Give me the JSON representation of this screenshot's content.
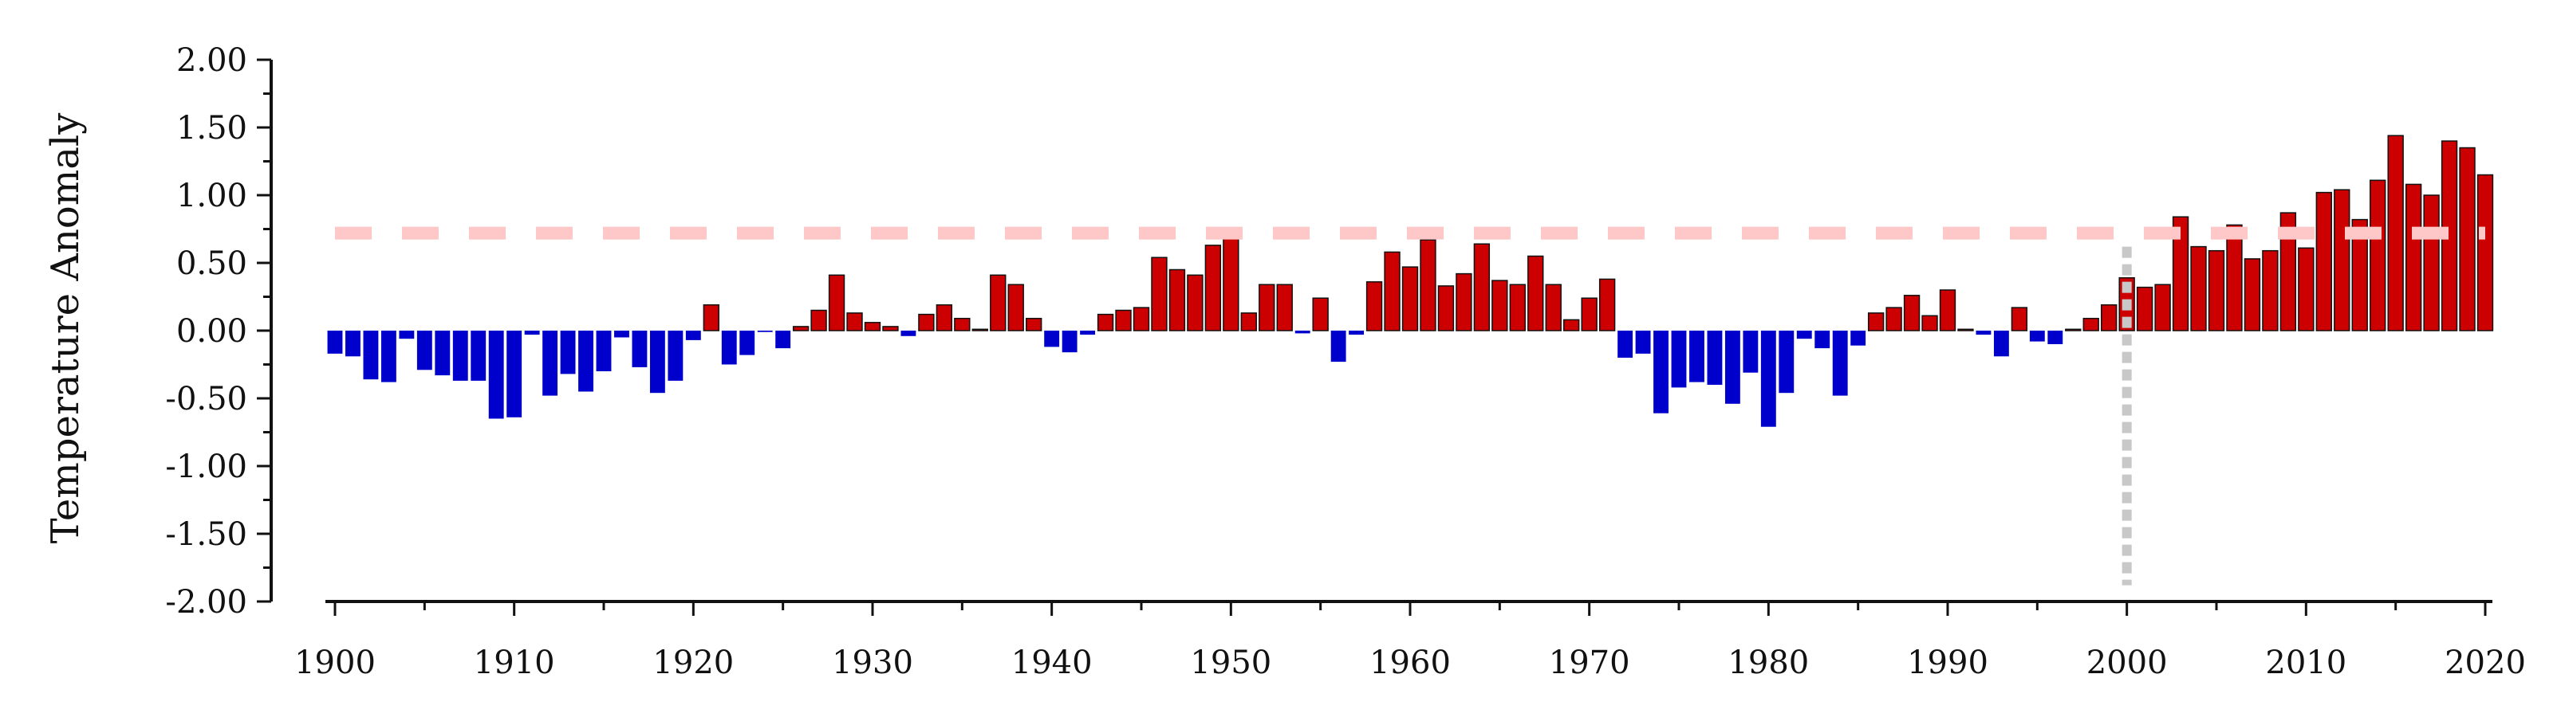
{
  "chart_data": {
    "type": "bar",
    "title": "",
    "xlabel": "",
    "ylabel": "Temperature Anomaly",
    "ylim": [
      -2.0,
      2.0
    ],
    "xlim": [
      1900,
      2020
    ],
    "grid": false,
    "legend": "none",
    "y_tick_labels": [
      "-2.00",
      "-1.50",
      "-1.00",
      "-0.50",
      "0.00",
      "0.50",
      "1.00",
      "1.50",
      "2.00"
    ],
    "x_tick_labels": [
      "1900",
      "1910",
      "1920",
      "1930",
      "1940",
      "1950",
      "1960",
      "1970",
      "1980",
      "1990",
      "2000",
      "2010",
      "2020"
    ],
    "colors": {
      "positive": "#cc0000",
      "negative": "#0000cc",
      "outline": "#111111",
      "reference_line": "#ffc8c8",
      "marker_line": "#c8c8c8"
    },
    "reference_line_y": 0.72,
    "marker_line_x": 2000,
    "x": [
      1900,
      1901,
      1902,
      1903,
      1904,
      1905,
      1906,
      1907,
      1908,
      1909,
      1910,
      1911,
      1912,
      1913,
      1914,
      1915,
      1916,
      1917,
      1918,
      1919,
      1920,
      1921,
      1922,
      1923,
      1924,
      1925,
      1926,
      1927,
      1928,
      1929,
      1930,
      1931,
      1932,
      1933,
      1934,
      1935,
      1936,
      1937,
      1938,
      1939,
      1940,
      1941,
      1942,
      1943,
      1944,
      1945,
      1946,
      1947,
      1948,
      1949,
      1950,
      1951,
      1952,
      1953,
      1954,
      1955,
      1956,
      1957,
      1958,
      1959,
      1960,
      1961,
      1962,
      1963,
      1964,
      1965,
      1966,
      1967,
      1968,
      1969,
      1970,
      1971,
      1972,
      1973,
      1974,
      1975,
      1976,
      1977,
      1978,
      1979,
      1980,
      1981,
      1982,
      1983,
      1984,
      1985,
      1986,
      1987,
      1988,
      1989,
      1990,
      1991,
      1992,
      1993,
      1994,
      1995,
      1996,
      1997,
      1998,
      1999,
      2000,
      2001,
      2002,
      2003,
      2004,
      2005,
      2006,
      2007,
      2008,
      2009,
      2010,
      2011,
      2012,
      2013,
      2014,
      2015,
      2016,
      2017,
      2018,
      2019,
      2020
    ],
    "values": [
      -0.17,
      -0.19,
      -0.36,
      -0.38,
      -0.06,
      -0.29,
      -0.33,
      -0.37,
      -0.37,
      -0.65,
      -0.64,
      -0.03,
      -0.48,
      -0.32,
      -0.45,
      -0.3,
      -0.05,
      -0.27,
      -0.46,
      -0.37,
      -0.07,
      0.19,
      -0.25,
      -0.18,
      -0.01,
      -0.13,
      0.03,
      0.15,
      0.41,
      0.13,
      0.06,
      0.03,
      -0.04,
      0.12,
      0.19,
      0.09,
      0.01,
      0.41,
      0.34,
      0.09,
      -0.12,
      -0.16,
      -0.03,
      0.12,
      0.15,
      0.17,
      0.54,
      0.45,
      0.41,
      0.63,
      0.71,
      0.13,
      0.34,
      0.34,
      -0.02,
      0.24,
      -0.23,
      -0.03,
      0.36,
      0.58,
      0.47,
      0.67,
      0.33,
      0.42,
      0.64,
      0.37,
      0.34,
      0.55,
      0.34,
      0.08,
      0.24,
      0.38,
      -0.2,
      -0.17,
      -0.61,
      -0.42,
      -0.38,
      -0.4,
      -0.54,
      -0.31,
      -0.71,
      -0.46,
      -0.06,
      -0.13,
      -0.48,
      -0.11,
      0.13,
      0.17,
      0.26,
      0.11,
      0.3,
      0.01,
      -0.03,
      -0.19,
      0.17,
      -0.08,
      -0.1,
      0.01,
      0.09,
      0.19,
      0.39,
      0.32,
      0.34,
      0.84,
      0.62,
      0.59,
      0.78,
      0.53,
      0.59,
      0.87,
      0.61,
      1.02,
      1.04,
      0.82,
      1.11,
      1.44,
      1.08,
      1.0,
      1.4,
      1.35,
      1.15
    ]
  }
}
